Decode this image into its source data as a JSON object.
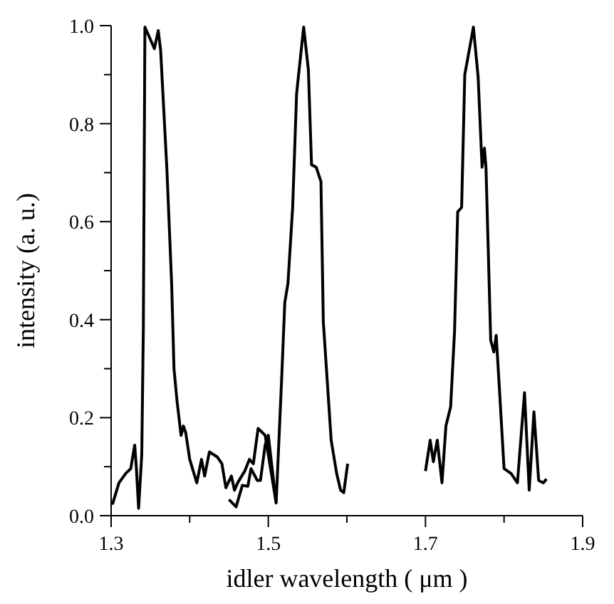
{
  "chart_data": {
    "type": "line",
    "xlabel": "idler wavelength ( μm )",
    "ylabel": "intensity (a. u.)",
    "xlim": [
      1.3,
      1.9
    ],
    "ylim": [
      0,
      1.0
    ],
    "xticks": [
      {
        "value": 1.3,
        "label": "1.3"
      },
      {
        "value": 1.4,
        "label": null
      },
      {
        "value": 1.5,
        "label": "1.5"
      },
      {
        "value": 1.6,
        "label": null
      },
      {
        "value": 1.7,
        "label": "1.7"
      },
      {
        "value": 1.8,
        "label": null
      },
      {
        "value": 1.9,
        "label": "1.9"
      }
    ],
    "yticks": [
      {
        "value": 0,
        "label": "0.0"
      },
      {
        "value": 0.1,
        "label": null
      },
      {
        "value": 0.2,
        "label": "0.2"
      },
      {
        "value": 0.3,
        "label": null
      },
      {
        "value": 0.4,
        "label": "0.4"
      },
      {
        "value": 0.5,
        "label": null
      },
      {
        "value": 0.6,
        "label": "0.6"
      },
      {
        "value": 0.7,
        "label": null
      },
      {
        "value": 0.8,
        "label": "0.8"
      },
      {
        "value": 0.9,
        "label": null
      },
      {
        "value": 1.0,
        "label": "1.0"
      }
    ],
    "grid": false,
    "marker": "none",
    "line_style": "solid",
    "series": [
      {
        "color": "#000000",
        "x": [
          1.3,
          1.302,
          1.31,
          1.319,
          1.325,
          1.33,
          1.332,
          1.335,
          1.339,
          1.341,
          1.343,
          1.351,
          1.355,
          1.36,
          1.363,
          1.371,
          1.377,
          1.38,
          1.384,
          1.389,
          1.392,
          1.395,
          1.4,
          1.409,
          1.415,
          1.419,
          1.425,
          1.435,
          1.441,
          1.446,
          1.453,
          1.457,
          1.461,
          1.47,
          1.476,
          1.481,
          1.487,
          1.496,
          1.51,
          1.517,
          1.521,
          1.525,
          1.531,
          1.536,
          1.545,
          1.551,
          1.555,
          1.561,
          1.567,
          1.57,
          1.58,
          1.587,
          1.592,
          1.596,
          1.601
        ],
        "values": [
          0.025,
          0.025,
          0.067,
          0.087,
          0.096,
          0.144,
          0.1,
          0.015,
          0.125,
          0.38,
          0.997,
          0.968,
          0.953,
          0.99,
          0.95,
          0.706,
          0.474,
          0.3,
          0.232,
          0.164,
          0.183,
          0.169,
          0.115,
          0.067,
          0.115,
          0.081,
          0.13,
          0.12,
          0.106,
          0.057,
          0.081,
          0.052,
          0.067,
          0.091,
          0.115,
          0.106,
          0.178,
          0.164,
          0.026,
          0.28,
          0.435,
          0.474,
          0.629,
          0.861,
          0.997,
          0.91,
          0.716,
          0.711,
          0.682,
          0.396,
          0.154,
          0.086,
          0.052,
          0.047,
          0.106
        ]
      },
      {
        "color": "#000000",
        "x": [
          1.45,
          1.459,
          1.467,
          1.474,
          1.478,
          1.486,
          1.49,
          1.496,
          1.5,
          1.51
        ],
        "values": [
          0.033,
          0.018,
          0.062,
          0.06,
          0.096,
          0.072,
          0.072,
          0.144,
          0.164,
          0.026
        ]
      },
      {
        "color": "#000000",
        "x": [
          1.7,
          1.706,
          1.71,
          1.715,
          1.721,
          1.726,
          1.732,
          1.737,
          1.741,
          1.746,
          1.75,
          1.761,
          1.767,
          1.772,
          1.775,
          1.777,
          1.783,
          1.787,
          1.79,
          1.794,
          1.8,
          1.809,
          1.817,
          1.826,
          1.832,
          1.838,
          1.844,
          1.85,
          1.854
        ],
        "values": [
          0.091,
          0.154,
          0.11,
          0.154,
          0.067,
          0.183,
          0.222,
          0.377,
          0.62,
          0.629,
          0.9,
          0.997,
          0.895,
          0.711,
          0.75,
          0.71,
          0.358,
          0.334,
          0.368,
          0.261,
          0.096,
          0.086,
          0.067,
          0.251,
          0.052,
          0.212,
          0.072,
          0.067,
          0.075
        ]
      }
    ]
  }
}
